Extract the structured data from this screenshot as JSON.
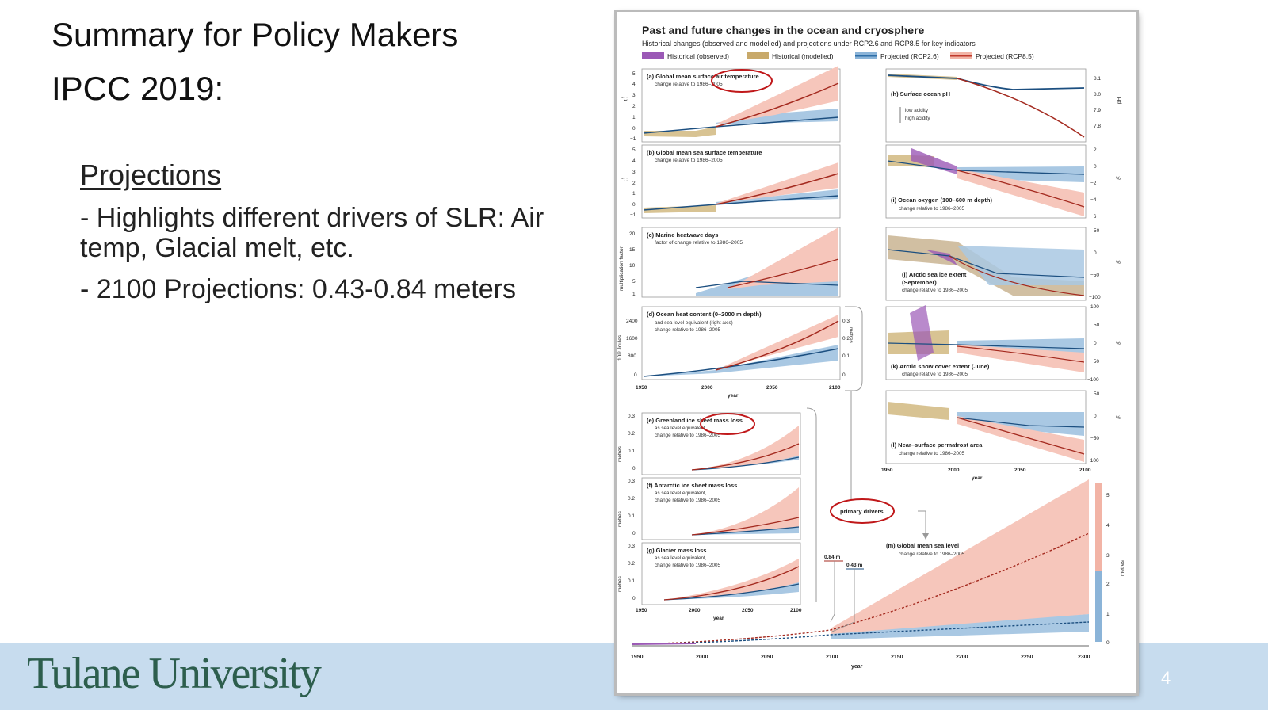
{
  "slide": {
    "title_line1": "Summary for Policy Makers",
    "title_line2": "IPCC 2019:",
    "subheading": "Projections",
    "bullets": [
      "- Highlights different drivers of SLR: Air temp, Glacial melt, etc.",
      "- 2100 Projections: 0.43-0.84 meters"
    ],
    "footer_logo": "Tulane University",
    "page_number": "4"
  },
  "figure": {
    "title": "Past and future changes in the ocean and cryosphere",
    "subtitle": "Historical changes (observed and modelled) and projections under RCP2.6 and RCP8.5 for key indicators",
    "legend": [
      {
        "label": "Historical (observed)",
        "color": "#9b59b6"
      },
      {
        "label": "Historical (modelled)",
        "color": "#c8a96a"
      },
      {
        "label": "Projected (RCP2.6)",
        "color": "#2f6fa8"
      },
      {
        "label": "Projected (RCP8.5)",
        "color": "#c0392b"
      }
    ],
    "panels": {
      "a": {
        "label": "(a) Global mean surface air temperature",
        "sub": "change relative to 1986–2005",
        "unit": "°C",
        "ticks": [
          "5",
          "4",
          "3",
          "2",
          "1",
          "0",
          "−1"
        ]
      },
      "b": {
        "label": "(b) Global mean sea surface temperature",
        "sub": "change relative to 1986–2005",
        "unit": "°C",
        "ticks": [
          "5",
          "4",
          "3",
          "2",
          "1",
          "0",
          "−1"
        ]
      },
      "c": {
        "label": "(c) Marine heatwave days",
        "sub": "factor of change relative to 1986–2005",
        "unit": "multiplication factor",
        "ticks": [
          "20",
          "15",
          "10",
          "5",
          "1"
        ]
      },
      "d": {
        "label": "(d) Ocean heat content (0–2000 m depth)",
        "sub1": "and sea level equivalent (right axis)",
        "sub2": "change relative to 1986–2005",
        "unit": "10²³ Joules",
        "right_unit": "metres",
        "ticks": [
          "2400",
          "1600",
          "800",
          "0"
        ],
        "right_ticks": [
          "0.3",
          "0.2",
          "0.1",
          "0"
        ]
      },
      "e": {
        "label": "(e) Greenland ice sheet mass loss",
        "sub1": "as sea level equivalent,",
        "sub2": "change relative to 1986–2005",
        "unit": "metres",
        "ticks": [
          "0.3",
          "0.2",
          "0.1",
          "0"
        ]
      },
      "f": {
        "label": "(f) Antarctic ice sheet mass loss",
        "sub1": "as sea level equivalent,",
        "sub2": "change relative to 1986–2005",
        "unit": "metres",
        "ticks": [
          "0.3",
          "0.2",
          "0.1",
          "0"
        ]
      },
      "g": {
        "label": "(g) Glacier mass loss",
        "sub1": "as sea level equivalent,",
        "sub2": "change relative to 1986–2005",
        "unit": "metres",
        "ticks": [
          "0.3",
          "0.2",
          "0.1",
          "0"
        ]
      },
      "h": {
        "label": "(h) Surface ocean pH",
        "sub1": "low acidity",
        "sub2": "high acidity",
        "unit": "pH",
        "ticks": [
          "8.1",
          "8.0",
          "7.9",
          "7.8"
        ]
      },
      "i": {
        "label": "(i) Ocean oxygen (100–600 m depth)",
        "sub": "change relative to 1986–2005",
        "unit": "%",
        "ticks": [
          "2",
          "0",
          "−2",
          "−4",
          "−6"
        ]
      },
      "j": {
        "label": "(j) Arctic sea ice extent",
        "label2": "(September)",
        "sub": "change relative to 1986–2005",
        "unit": "%",
        "ticks": [
          "50",
          "0",
          "−50",
          "−100"
        ]
      },
      "k": {
        "label": "(k) Arctic snow cover extent (June)",
        "sub": "change relative to 1986–2005",
        "unit": "%",
        "ticks": [
          "100",
          "50",
          "0",
          "−50",
          "−100"
        ]
      },
      "l": {
        "label": "(l) Near–surface permafrost area",
        "sub": "change relative to 1986–2005",
        "unit": "%",
        "ticks": [
          "50",
          "0",
          "−50",
          "−100"
        ]
      },
      "m": {
        "label": "(m) Global mean sea level",
        "sub": "change relative to 1986–2005",
        "unit": "metres",
        "ticks": [
          "5",
          "4",
          "3",
          "2",
          "1",
          "0"
        ]
      }
    },
    "x_ticks_short": [
      "1950",
      "2000",
      "2050",
      "2100"
    ],
    "x_ticks_long": [
      "1950",
      "2000",
      "2050",
      "2100",
      "2150",
      "2200",
      "2250",
      "2300"
    ],
    "x_label": "year",
    "primary_drivers": "primary drivers",
    "annot_high": "0.84 m",
    "annot_low": "0.43 m"
  }
}
